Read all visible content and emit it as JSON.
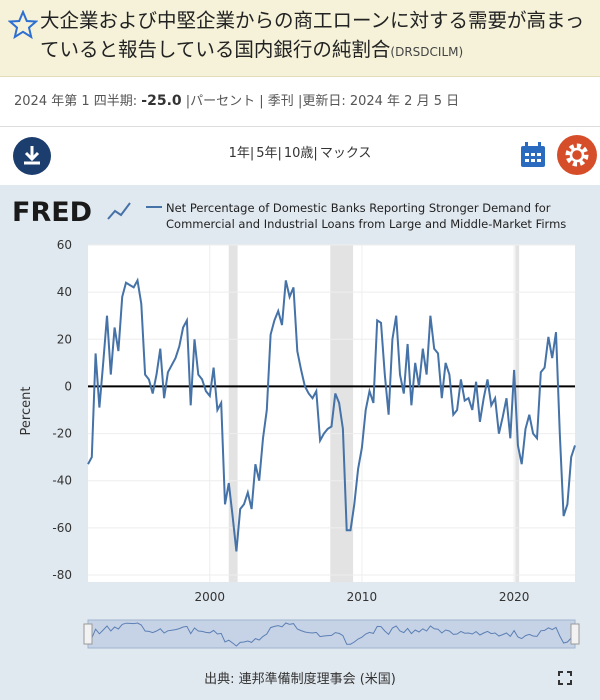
{
  "header": {
    "title": "大企業および中堅企業からの商工ローンに対する需要が高まっていると報告している国内銀行の純割合",
    "code": "(DRSDCILM)"
  },
  "info": {
    "period": "2024 年第 1 四半期:",
    "latest": "-25.0",
    "details": "|パーセント | 季刊 |更新日: 2024 年 2 月 5 日"
  },
  "toolbar": {
    "ranges": [
      "1年|",
      "5年|",
      "10歳|",
      "マックス"
    ]
  },
  "logo": "FRED",
  "source": "出典: 連邦準備制度理事会 (米国)",
  "chart_data": {
    "type": "line",
    "y_label": "Percent",
    "xlim": [
      1992,
      2024
    ],
    "xticks": [
      2000,
      2010,
      2020
    ],
    "ylim": [
      -80,
      60
    ],
    "yticks": [
      -80,
      -60,
      -40,
      -20,
      0,
      20,
      40,
      60
    ],
    "grid": true,
    "hline": 0,
    "shaded_periods": [
      [
        2001.25,
        2001.83
      ],
      [
        2007.92,
        2009.42
      ],
      [
        2020.08,
        2020.33
      ]
    ],
    "x": [
      1992,
      1992.25,
      1992.5,
      1992.75,
      1993,
      1993.25,
      1993.5,
      1993.75,
      1994,
      1994.25,
      1994.5,
      1994.75,
      1995,
      1995.25,
      1995.5,
      1995.75,
      1996,
      1996.25,
      1996.5,
      1996.75,
      1997,
      1997.25,
      1997.5,
      1997.75,
      1998,
      1998.25,
      1998.5,
      1998.75,
      1999,
      1999.25,
      1999.5,
      1999.75,
      2000,
      2000.25,
      2000.5,
      2000.75,
      2001,
      2001.25,
      2001.5,
      2001.75,
      2002,
      2002.25,
      2002.5,
      2002.75,
      2003,
      2003.25,
      2003.5,
      2003.75,
      2004,
      2004.25,
      2004.5,
      2004.75,
      2005,
      2005.25,
      2005.5,
      2005.75,
      2006,
      2006.25,
      2006.5,
      2006.75,
      2007,
      2007.25,
      2007.5,
      2007.75,
      2008,
      2008.25,
      2008.5,
      2008.75,
      2009,
      2009.25,
      2009.5,
      2009.75,
      2010,
      2010.25,
      2010.5,
      2010.75,
      2011,
      2011.25,
      2011.5,
      2011.75,
      2012,
      2012.25,
      2012.5,
      2012.75,
      2013,
      2013.25,
      2013.5,
      2013.75,
      2014,
      2014.25,
      2014.5,
      2014.75,
      2015,
      2015.25,
      2015.5,
      2015.75,
      2016,
      2016.25,
      2016.5,
      2016.75,
      2017,
      2017.25,
      2017.5,
      2017.75,
      2018,
      2018.25,
      2018.5,
      2018.75,
      2019,
      2019.25,
      2019.5,
      2019.75,
      2020,
      2020.25,
      2020.5,
      2020.75,
      2021,
      2021.25,
      2021.5,
      2021.75,
      2022,
      2022.25,
      2022.5,
      2022.75,
      2023,
      2023.25,
      2023.5,
      2023.75,
      2024
    ],
    "series": [
      {
        "name": "Net Percentage of Domestic Banks Reporting Stronger Demand for Commercial and Industrial Loans from Large and Middle-Market Firms",
        "color": "#4572a7",
        "values": [
          -33,
          -30,
          14,
          -9,
          10,
          30,
          5,
          25,
          15,
          38,
          44,
          43,
          42,
          45,
          35,
          5,
          3,
          -3,
          5,
          16,
          -5,
          6,
          9,
          12,
          17,
          25,
          28,
          -8,
          20,
          5,
          3,
          -2,
          -4,
          8,
          -10,
          -7,
          -50,
          -41,
          -55,
          -70,
          -52,
          -50,
          -45,
          -52,
          -33,
          -40,
          -22,
          -10,
          22,
          28,
          32,
          26,
          45,
          38,
          42,
          15,
          7,
          0,
          -3,
          -5,
          -2,
          -23,
          -20,
          -18,
          -17,
          -3,
          -7,
          -18,
          -61,
          -61,
          -50,
          -35,
          -26,
          -10,
          -2,
          -7,
          28,
          27,
          5,
          -12,
          20,
          30,
          5,
          -3,
          18,
          -8,
          10,
          0,
          16,
          5,
          30,
          16,
          14,
          -5,
          10,
          5,
          -12,
          -10,
          3,
          -6,
          -5,
          -10,
          2,
          -15,
          -5,
          3,
          -8,
          -5,
          -20,
          -13,
          -5,
          -22,
          7,
          -25,
          -33,
          -18,
          -12,
          -20,
          -22,
          6,
          8,
          21,
          12,
          23,
          -20,
          -55,
          -50,
          -30,
          -25
        ]
      }
    ]
  }
}
